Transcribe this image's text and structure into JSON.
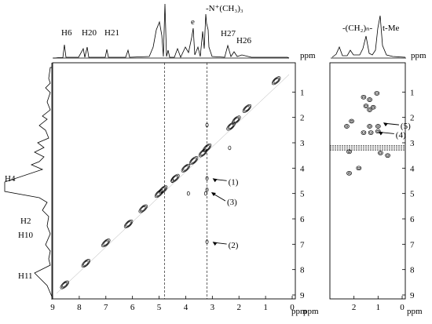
{
  "chart_data": {
    "type": "scatter",
    "description_units": "ppm",
    "axes": {
      "main": {
        "x_range": [
          9,
          0
        ],
        "y_range": [
          0,
          9
        ],
        "x_ticks": [
          9,
          8,
          7,
          6,
          5,
          4,
          3,
          2,
          1,
          0
        ],
        "y_ticks": [
          1,
          2,
          3,
          4,
          5,
          6,
          7,
          8,
          9
        ],
        "unit_label": "ppm"
      },
      "inset": {
        "x_range": [
          3,
          0
        ],
        "y_range": [
          0,
          9
        ],
        "x_ticks": [
          2,
          1,
          0
        ],
        "y_ticks": [
          1,
          2,
          3,
          4,
          5,
          6,
          7,
          8,
          9
        ],
        "unit_label": "ppm"
      }
    },
    "top_labels": {
      "h6": "H6",
      "h20": "H20",
      "h21": "H21",
      "e": "e",
      "nme3": "-N⁺(CH₃)₃",
      "h27": "H27",
      "h26": "H26",
      "ch2n": "-(CH₂)ₙ-",
      "tme": "t-Me",
      "ppm": "ppm"
    },
    "left_labels": {
      "h4": "H4",
      "h2": "H2",
      "h10": "H10",
      "h11": "H11"
    },
    "annotations": [
      {
        "id": "a1",
        "text": "(1)",
        "x": 3.05,
        "y": 4.4
      },
      {
        "id": "a3",
        "text": "(3)",
        "x": 3.1,
        "y": 4.95
      },
      {
        "id": "a2",
        "text": "(2)",
        "x": 3.05,
        "y": 6.9
      },
      {
        "id": "a5",
        "text": "(5)",
        "x": 0.85,
        "y": 2.2
      },
      {
        "id": "a4",
        "text": "(4)",
        "x": 1.05,
        "y": 2.55
      }
    ],
    "diagonal_peaks": [
      [
        8.55,
        8.6
      ],
      [
        7.75,
        7.75
      ],
      [
        7.0,
        6.95
      ],
      [
        6.15,
        6.2
      ],
      [
        5.6,
        5.6
      ],
      [
        5.0,
        5.0
      ],
      [
        4.85,
        4.85
      ],
      [
        4.4,
        4.4
      ],
      [
        4.0,
        4.0
      ],
      [
        3.7,
        3.7
      ],
      [
        3.35,
        3.4
      ],
      [
        3.2,
        3.2
      ],
      [
        2.3,
        2.35
      ],
      [
        2.1,
        2.1
      ],
      [
        1.7,
        1.65
      ],
      [
        0.6,
        0.55
      ]
    ],
    "cross_peaks": [
      [
        3.2,
        4.4
      ],
      [
        3.2,
        6.9
      ],
      [
        3.2,
        4.85
      ],
      [
        3.25,
        5.0
      ],
      [
        3.9,
        5.0
      ],
      [
        4.5,
        4.5
      ],
      [
        2.35,
        3.2
      ],
      [
        3.2,
        2.3
      ]
    ],
    "inset_peaks": [
      [
        1.35,
        1.3
      ],
      [
        1.2,
        1.6
      ],
      [
        1.5,
        1.55
      ],
      [
        1.35,
        1.7
      ],
      [
        1.6,
        1.2
      ],
      [
        1.05,
        1.05
      ],
      [
        1.0,
        2.35
      ],
      [
        1.35,
        2.35
      ],
      [
        1.0,
        2.55
      ],
      [
        1.3,
        2.6
      ],
      [
        1.6,
        2.6
      ],
      [
        2.3,
        2.35
      ],
      [
        2.1,
        2.15
      ],
      [
        2.2,
        3.35
      ],
      [
        0.9,
        3.4
      ],
      [
        0.6,
        3.5
      ],
      [
        1.8,
        4.0
      ],
      [
        2.2,
        4.2
      ]
    ],
    "vertical_guides_ppm": [
      4.8,
      3.2
    ],
    "horizontal_guides_ppm": [
      3.2
    ]
  }
}
